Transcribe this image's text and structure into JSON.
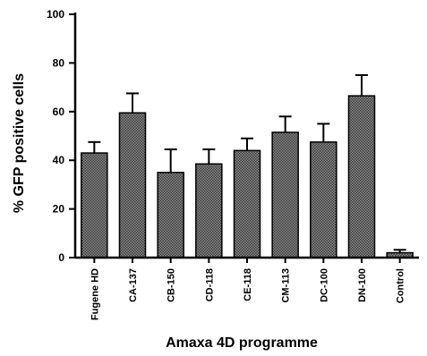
{
  "chart_data": {
    "type": "bar",
    "title": "",
    "xlabel": "Amaxa 4D programme",
    "ylabel": "% GFP positive cells",
    "ylim": [
      0,
      100
    ],
    "yticks": [
      0,
      20,
      40,
      60,
      80,
      100
    ],
    "grid": false,
    "legend": "none",
    "bar_fill": "#7a7a7a",
    "categories": [
      "Fugene HD",
      "CA-137",
      "CB-150",
      "CD-118",
      "CE-118",
      "CM-113",
      "DC-100",
      "DN-100",
      "Control"
    ],
    "values": [
      43,
      59.5,
      35,
      38.5,
      44,
      51.5,
      47.5,
      66.5,
      2
    ],
    "error_upper": [
      4.5,
      8,
      9.5,
      6,
      5,
      6.5,
      7.5,
      8.5,
      1.2
    ]
  }
}
